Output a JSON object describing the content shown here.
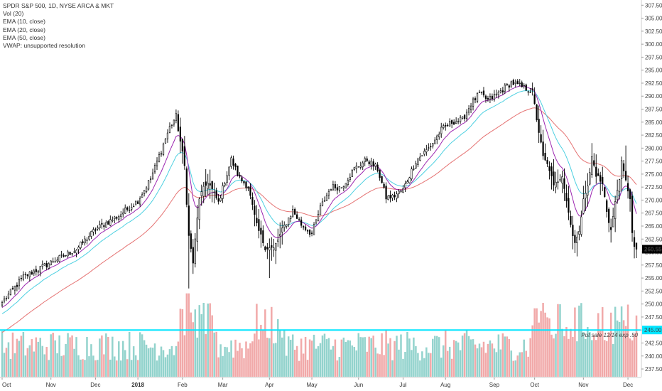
{
  "legend": {
    "title": "SPDR S&P 500, 1D, NYSE ARCA & MKT",
    "vol": "Vol (20)",
    "ema10": "EMA (10, close)",
    "ema20": "EMA (20, close)",
    "ema50": "EMA (50, close)",
    "vwap": "VWAP: unsupported resolution"
  },
  "annotation": {
    "text": "Put sale 12/14 exp .50",
    "level": 245.0
  },
  "last_price": {
    "value": 260.55,
    "text": "260.55"
  },
  "hline_label": "245.00",
  "colors": {
    "background": "#ffffff",
    "candle": "#000000",
    "ema10": "#9c27b0",
    "ema20": "#4dd0e1",
    "ema50": "#e57373",
    "vol_up": "#80cbc4",
    "vol_down": "#ef9a9a",
    "hline": "#00e5ff",
    "price_tag": "#000000"
  },
  "chart_data": {
    "type": "candlestick",
    "symbol": "SPDR S&P 500, 1D, NYSE ARCA & MKT",
    "ylim": [
      236.0,
      308.5
    ],
    "y_ticks": [
      237.5,
      240.0,
      242.5,
      245.0,
      247.5,
      250.0,
      252.5,
      255.0,
      257.5,
      260.0,
      262.5,
      265.0,
      267.5,
      270.0,
      272.5,
      275.0,
      277.5,
      280.0,
      282.5,
      285.0,
      287.5,
      290.0,
      292.5,
      295.0,
      297.5,
      300.0,
      302.5,
      305.0,
      307.5
    ],
    "x_labels": [
      {
        "label": "Oct",
        "bar": 0
      },
      {
        "label": "Nov",
        "bar": 23
      },
      {
        "label": "Dec",
        "bar": 44
      },
      {
        "label": "2018",
        "bar": 64,
        "bold": true
      },
      {
        "label": "Feb",
        "bar": 85
      },
      {
        "label": "Mar",
        "bar": 104
      },
      {
        "label": "Apr",
        "bar": 126
      },
      {
        "label": "May",
        "bar": 146
      },
      {
        "label": "Jun",
        "bar": 168
      },
      {
        "label": "Jul",
        "bar": 189
      },
      {
        "label": "Aug",
        "bar": 209
      },
      {
        "label": "Sep",
        "bar": 232
      },
      {
        "label": "Oct",
        "bar": 251
      },
      {
        "label": "Nov",
        "bar": 274
      },
      {
        "label": "Dec",
        "bar": 295
      }
    ],
    "close_anchors": [
      [
        0,
        250.3
      ],
      [
        10,
        255.2
      ],
      [
        22,
        257.8
      ],
      [
        35,
        260.5
      ],
      [
        44,
        264.4
      ],
      [
        55,
        267.0
      ],
      [
        64,
        269.9
      ],
      [
        70,
        274.1
      ],
      [
        79,
        284.0
      ],
      [
        82,
        286.1
      ],
      [
        86,
        276.5
      ],
      [
        88,
        263.0
      ],
      [
        90,
        258.0
      ],
      [
        93,
        270.5
      ],
      [
        97,
        273.6
      ],
      [
        102,
        269.5
      ],
      [
        108,
        277.8
      ],
      [
        112,
        274.2
      ],
      [
        116,
        272.5
      ],
      [
        120,
        265.0
      ],
      [
        124,
        261.0
      ],
      [
        128,
        260.6
      ],
      [
        133,
        265.0
      ],
      [
        137,
        268.0
      ],
      [
        141,
        265.3
      ],
      [
        146,
        263.5
      ],
      [
        150,
        268.5
      ],
      [
        155,
        272.5
      ],
      [
        160,
        272.5
      ],
      [
        166,
        276.0
      ],
      [
        172,
        277.8
      ],
      [
        177,
        276.0
      ],
      [
        181,
        270.5
      ],
      [
        184,
        270.6
      ],
      [
        189,
        272.0
      ],
      [
        195,
        277.5
      ],
      [
        202,
        280.4
      ],
      [
        207,
        283.5
      ],
      [
        212,
        285.0
      ],
      [
        217,
        285.5
      ],
      [
        221,
        288.5
      ],
      [
        225,
        290.5
      ],
      [
        229,
        289.2
      ],
      [
        233,
        290.3
      ],
      [
        240,
        292.6
      ],
      [
        248,
        291.3
      ],
      [
        250,
        290.7
      ],
      [
        253,
        283.2
      ],
      [
        255,
        278.2
      ],
      [
        258,
        276.0
      ],
      [
        260,
        272.5
      ],
      [
        264,
        275.0
      ],
      [
        266,
        270.0
      ],
      [
        268,
        265.3
      ],
      [
        270,
        262.0
      ],
      [
        272,
        263.5
      ],
      [
        274,
        270.8
      ],
      [
        276,
        272.4
      ],
      [
        278,
        278.2
      ],
      [
        280,
        275.0
      ],
      [
        283,
        273.0
      ],
      [
        285,
        268.0
      ],
      [
        287,
        264.2
      ],
      [
        290,
        272.0
      ],
      [
        292,
        277.0
      ],
      [
        294,
        273.5
      ],
      [
        296,
        270.6
      ],
      [
        297,
        263.5
      ],
      [
        298,
        260.55
      ]
    ],
    "volume_ylim": [
      0,
      65
    ],
    "series": [
      {
        "name": "EMA (10, close)"
      },
      {
        "name": "EMA (20, close)"
      },
      {
        "name": "EMA (50, close)"
      },
      {
        "name": "Vol (20)"
      }
    ]
  }
}
